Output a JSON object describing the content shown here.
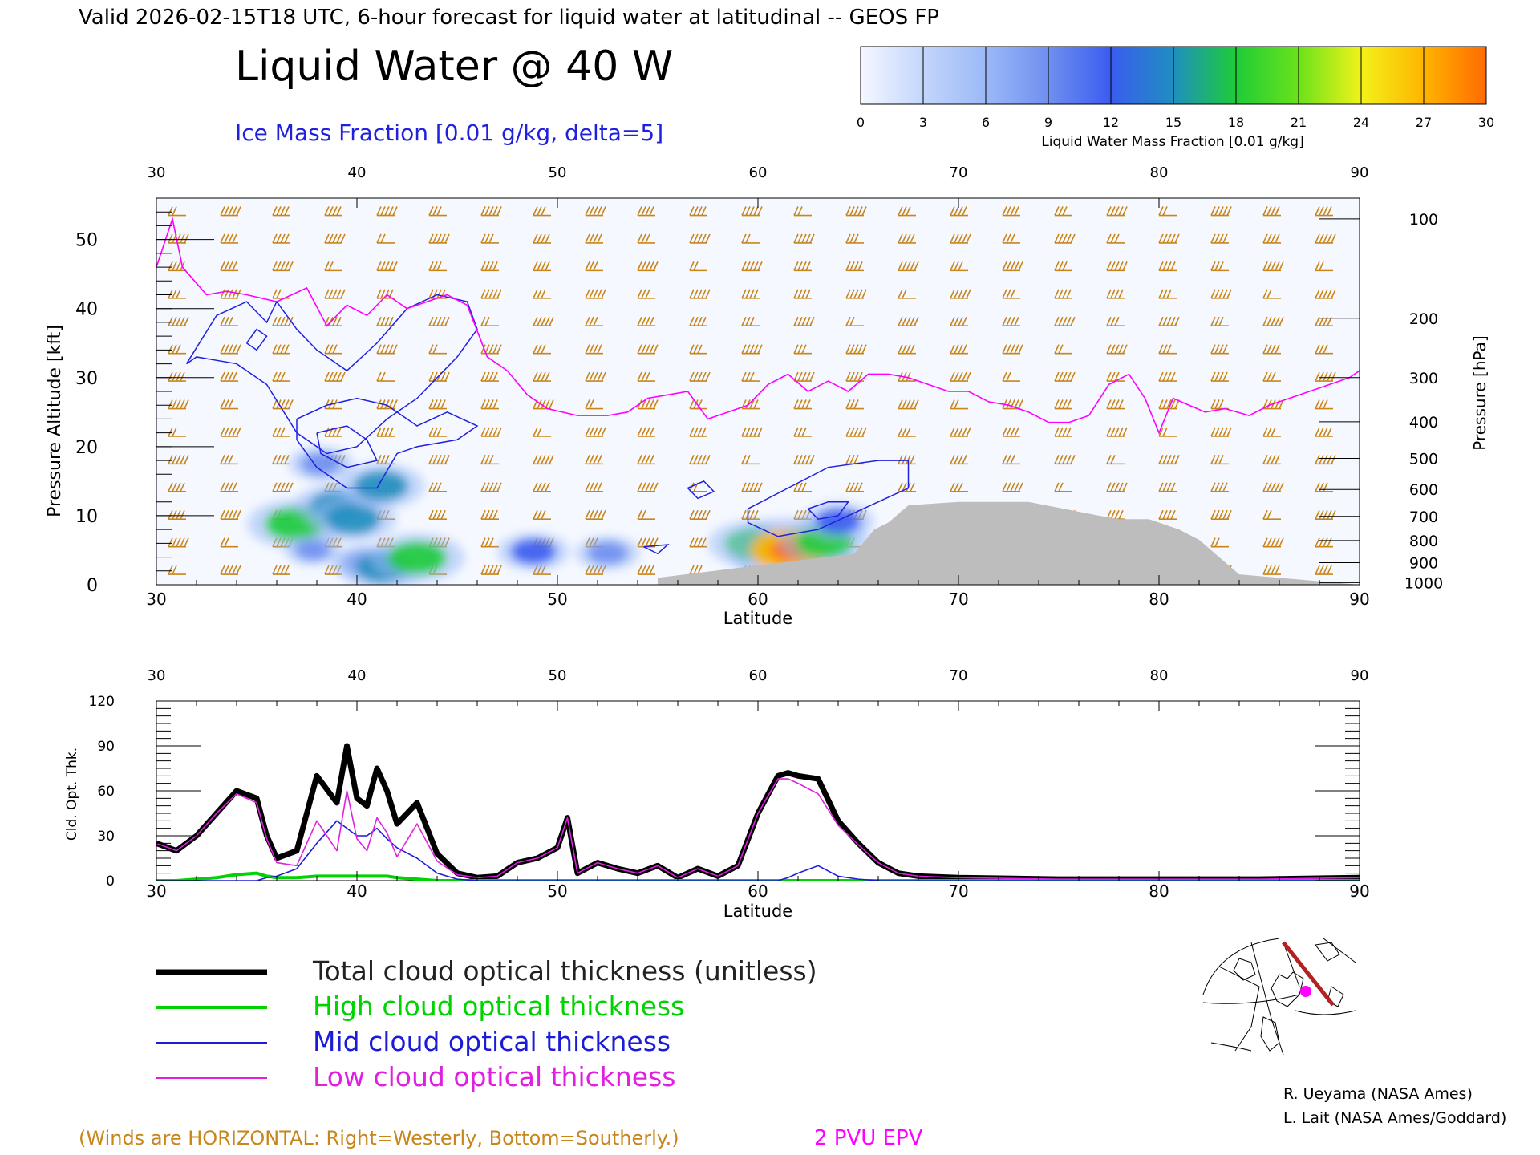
{
  "header": {
    "valid_line": "Valid 2026-02-15T18 UTC, 6-hour forecast for liquid water at latitudinal -- GEOS FP",
    "main_title": "Liquid Water @ 40 W",
    "ice_label": "Ice Mass Fraction [0.01 g/kg, delta=5]"
  },
  "colorbar": {
    "ticks": [
      "0",
      "3",
      "6",
      "9",
      "12",
      "15",
      "18",
      "21",
      "24",
      "27",
      "30"
    ],
    "colors": [
      "#f4f7ff",
      "#c3d6fb",
      "#9bb9f7",
      "#6f8ff0",
      "#3a5cf0",
      "#1f8fbf",
      "#1ecc38",
      "#6be21a",
      "#f2f21a",
      "#ffb400",
      "#ff6a00",
      "#ff2400"
    ],
    "label": "Liquid Water Mass Fraction [0.01 g/kg]"
  },
  "colors": {
    "ice_contour": "#2020e0",
    "epv": "#ff00ff",
    "wind_barb": "#c8861a",
    "terrain": "#bdbdbd",
    "total": "#000000",
    "high": "#00d400",
    "mid": "#1c1cd8",
    "low": "#e020e0"
  },
  "credits": [
    "R. Ueyama (NASA Ames)",
    "L. Lait (NASA Ames/Goddard)"
  ],
  "notes": {
    "winds": "(Winds are HORIZONTAL: Right=Westerly, Bottom=Southerly.)",
    "epv": "2 PVU EPV"
  },
  "legend": [
    {
      "label": "Total cloud optical thickness (unitless)",
      "color": "#000000",
      "width": 7
    },
    {
      "label": "High cloud optical thickness",
      "color": "#00d400",
      "width": 4
    },
    {
      "label": "Mid cloud optical thickness",
      "color": "#1c1cd8",
      "width": 2
    },
    {
      "label": "Low cloud optical thickness",
      "color": "#e020e0",
      "width": 2
    }
  ],
  "map_icon": "polar-stereographic-locator-map",
  "chart_data": [
    {
      "type": "heatmap",
      "xlabel": "Latitude",
      "ylabel": "Pressure Altitude [kft]",
      "y2label": "Pressure [hPa]",
      "xlim": [
        30,
        90
      ],
      "ylim": [
        0,
        56
      ],
      "xticks": [
        "30",
        "40",
        "50",
        "60",
        "70",
        "80",
        "90"
      ],
      "yticks": [
        "0",
        "10",
        "20",
        "30",
        "40",
        "50"
      ],
      "pressure_ticks": [
        {
          "label": "100",
          "kft": 53
        },
        {
          "label": "200",
          "kft": 38.6
        },
        {
          "label": "300",
          "kft": 30
        },
        {
          "label": "400",
          "kft": 23.6
        },
        {
          "label": "500",
          "kft": 18.3
        },
        {
          "label": "600",
          "kft": 13.8
        },
        {
          "label": "700",
          "kft": 9.9
        },
        {
          "label": "800",
          "kft": 6.4
        },
        {
          "label": "900",
          "kft": 3.2
        },
        {
          "label": "1000",
          "kft": 0.3
        }
      ],
      "liquid_blobs": [
        {
          "lat": 36.9,
          "kft": 8.8,
          "value": 18
        },
        {
          "lat": 38.9,
          "kft": 11.5,
          "value": 14
        },
        {
          "lat": 39.8,
          "kft": 9.5,
          "value": 16
        },
        {
          "lat": 41.2,
          "kft": 14.3,
          "value": 16
        },
        {
          "lat": 38.2,
          "kft": 17.5,
          "value": 10
        },
        {
          "lat": 37.8,
          "kft": 5,
          "value": 8
        },
        {
          "lat": 40.3,
          "kft": 3.2,
          "value": 10
        },
        {
          "lat": 41.3,
          "kft": 2.5,
          "value": 16
        },
        {
          "lat": 43.0,
          "kft": 3.9,
          "value": 18
        },
        {
          "lat": 48.8,
          "kft": 4.8,
          "value": 12
        },
        {
          "lat": 52.5,
          "kft": 4.6,
          "value": 10
        },
        {
          "lat": 59.8,
          "kft": 5.9,
          "value": 17
        },
        {
          "lat": 61.6,
          "kft": 5,
          "value": 26
        },
        {
          "lat": 63.3,
          "kft": 6.2,
          "value": 17
        },
        {
          "lat": 64.0,
          "kft": 9.2,
          "value": 12
        }
      ],
      "epv_2pvu": {
        "lat": [
          30,
          30.8,
          31.3,
          32.5,
          33.5,
          34.5,
          36,
          37.5,
          38.5,
          39.5,
          40.5,
          41.5,
          42.5,
          43.5,
          44.5,
          45.5,
          46.5,
          47.5,
          48.5,
          49.5,
          51,
          52.5,
          53.5,
          54.5,
          55.5,
          56.5,
          57.5,
          58.5,
          59.5,
          60.5,
          61.5,
          62.5,
          63.5,
          64.5,
          65.5,
          66.5,
          67.5,
          68.5,
          69.5,
          70.5,
          71.5,
          72.5,
          73.5,
          74.5,
          75.5,
          76.5,
          77.5,
          78.5,
          79.3,
          80,
          80.7,
          81.5,
          82.3,
          83.3,
          84.5,
          85.5,
          86.5,
          87.5,
          88.5,
          89.5,
          90
        ],
        "kft": [
          46,
          53,
          46,
          42,
          42.5,
          42,
          41,
          43,
          37.5,
          40.5,
          39,
          42,
          40,
          41,
          42,
          40.5,
          33,
          31,
          27.5,
          25.5,
          24.5,
          24.5,
          25,
          27,
          27.5,
          28,
          24,
          25,
          26,
          29,
          30.5,
          28,
          29.5,
          28,
          30.5,
          30.5,
          30,
          29,
          28,
          28,
          26.5,
          26,
          25,
          23.5,
          23.5,
          24.5,
          29,
          30.5,
          27,
          22,
          27,
          26,
          25,
          25.5,
          24.5,
          26,
          27,
          28,
          29,
          30,
          31
        ]
      },
      "terrain": {
        "lat": [
          55,
          64.8,
          65.8,
          66.5,
          67.5,
          70,
          73.5,
          77,
          78,
          79.5,
          81,
          82,
          83,
          84,
          90
        ],
        "kft": [
          1,
          4.5,
          8,
          9,
          11.5,
          12,
          12,
          10,
          9.5,
          9.5,
          8,
          6.5,
          4,
          1.5,
          0
        ]
      }
    },
    {
      "type": "line",
      "xlabel": "Latitude",
      "ylabel": "Cld. Opt. Thk.",
      "xlim": [
        30,
        90
      ],
      "ylim": [
        0,
        120
      ],
      "xticks": [
        "30",
        "40",
        "50",
        "60",
        "70",
        "80",
        "90"
      ],
      "yticks": [
        "0",
        "30",
        "60",
        "90",
        "120"
      ],
      "x": [
        30,
        31,
        32,
        33,
        34,
        35,
        35.5,
        36,
        37,
        38,
        39,
        39.5,
        40,
        40.5,
        41,
        41.5,
        42,
        43,
        44,
        45,
        46,
        47,
        48,
        49,
        50,
        50.5,
        51,
        52,
        53,
        54,
        55,
        56,
        57,
        58,
        59,
        60,
        61,
        61.5,
        62,
        63,
        64,
        65,
        66,
        67,
        68,
        70,
        75,
        80,
        85,
        90
      ],
      "series": [
        {
          "name": "Total cloud optical thickness (unitless)",
          "values": [
            25,
            20,
            30,
            45,
            60,
            55,
            30,
            15,
            20,
            70,
            52,
            90,
            55,
            50,
            75,
            60,
            38,
            52,
            18,
            5,
            2,
            3,
            12,
            15,
            22,
            42,
            5,
            12,
            8,
            5,
            10,
            2,
            8,
            3,
            10,
            45,
            70,
            72,
            70,
            68,
            40,
            25,
            12,
            5,
            3,
            2,
            1,
            1,
            1,
            2
          ]
        },
        {
          "name": "High cloud optical thickness",
          "values": [
            0,
            0,
            1,
            2,
            4,
            5,
            3,
            2,
            2,
            3,
            3,
            3,
            3,
            3,
            3,
            3,
            2,
            1,
            0,
            0,
            0,
            0,
            0,
            0,
            0,
            0,
            0,
            0,
            0,
            0,
            0,
            0,
            0,
            0,
            0,
            0,
            0,
            0,
            0,
            0,
            0,
            0,
            0,
            0,
            0,
            0,
            0,
            0,
            0,
            0
          ]
        },
        {
          "name": "Mid cloud optical thickness",
          "values": [
            0,
            0,
            0,
            0,
            0,
            0,
            2,
            3,
            8,
            25,
            40,
            35,
            30,
            30,
            35,
            28,
            22,
            15,
            5,
            1,
            0,
            0,
            0,
            0,
            0,
            0,
            0,
            0,
            0,
            0,
            0,
            0,
            0,
            0,
            0,
            0,
            0,
            2,
            5,
            10,
            3,
            1,
            0,
            0,
            0,
            0,
            0,
            0,
            0,
            0
          ]
        },
        {
          "name": "Low cloud optical thickness",
          "values": [
            25,
            20,
            30,
            45,
            58,
            52,
            28,
            12,
            10,
            40,
            20,
            60,
            28,
            20,
            42,
            32,
            16,
            38,
            13,
            4,
            2,
            3,
            12,
            15,
            22,
            42,
            5,
            12,
            8,
            5,
            10,
            2,
            8,
            3,
            10,
            45,
            68,
            68,
            65,
            58,
            37,
            24,
            12,
            5,
            3,
            2,
            1,
            1,
            1,
            2
          ]
        }
      ]
    }
  ]
}
